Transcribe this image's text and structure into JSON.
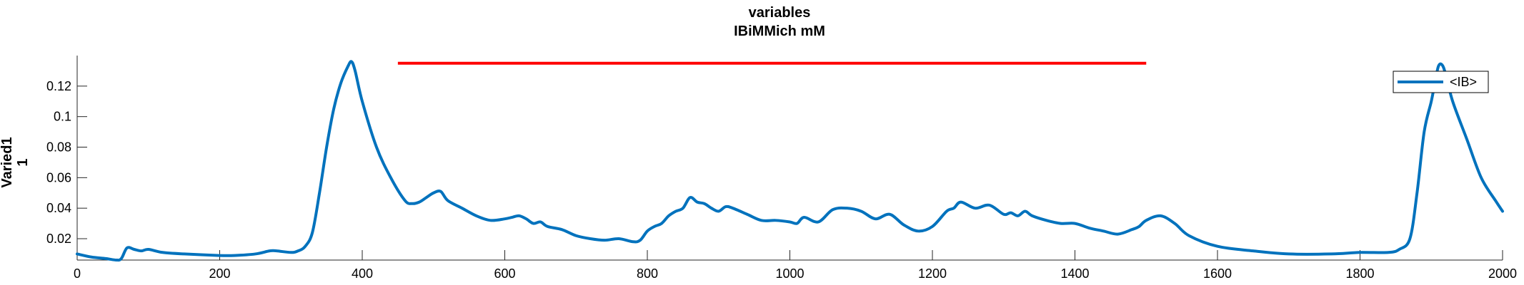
{
  "chart_data": {
    "type": "line",
    "title_lines": [
      "variables",
      "IBiMMich mM"
    ],
    "xlabel": "",
    "ylabel_lines": [
      "Varied1",
      "1"
    ],
    "xlim": [
      0,
      2000
    ],
    "ylim": [
      0.006,
      0.14
    ],
    "x_ticks": [
      0,
      200,
      400,
      600,
      800,
      1000,
      1200,
      1400,
      1600,
      1800,
      2000
    ],
    "x_tick_labels": [
      "0",
      "200",
      "400",
      "600",
      "800",
      "1000",
      "1200",
      "1400",
      "1600",
      "1800",
      "2000"
    ],
    "y_ticks": [
      0.02,
      0.04,
      0.06,
      0.08,
      0.1,
      0.12
    ],
    "y_tick_labels": [
      "0.02",
      "0.04",
      "0.06",
      "0.08",
      "0.1",
      "0.12"
    ],
    "grid": false,
    "legend_position": "top-right",
    "series": [
      {
        "name": "<IB>",
        "color": "#0072BD",
        "x": [
          0,
          20,
          40,
          55,
          62,
          70,
          80,
          90,
          100,
          120,
          150,
          200,
          220,
          250,
          270,
          280,
          300,
          310,
          320,
          330,
          340,
          350,
          360,
          370,
          380,
          385,
          390,
          400,
          420,
          440,
          460,
          470,
          480,
          490,
          500,
          510,
          520,
          540,
          560,
          580,
          600,
          610,
          620,
          630,
          640,
          650,
          660,
          680,
          700,
          720,
          740,
          760,
          780,
          790,
          800,
          810,
          820,
          830,
          840,
          850,
          860,
          870,
          880,
          890,
          900,
          910,
          920,
          940,
          960,
          980,
          1000,
          1010,
          1020,
          1040,
          1060,
          1080,
          1100,
          1120,
          1140,
          1160,
          1180,
          1200,
          1220,
          1230,
          1240,
          1260,
          1280,
          1300,
          1310,
          1320,
          1330,
          1340,
          1360,
          1380,
          1400,
          1420,
          1440,
          1460,
          1480,
          1490,
          1500,
          1520,
          1540,
          1560,
          1600,
          1650,
          1700,
          1760,
          1800,
          1840,
          1855,
          1870,
          1880,
          1890,
          1900,
          1905,
          1910,
          1915,
          1920,
          1930,
          1950,
          1970,
          1990,
          2000
        ],
        "values": [
          0.01,
          0.008,
          0.007,
          0.006,
          0.007,
          0.014,
          0.013,
          0.012,
          0.013,
          0.011,
          0.01,
          0.009,
          0.009,
          0.01,
          0.012,
          0.012,
          0.011,
          0.012,
          0.015,
          0.024,
          0.05,
          0.08,
          0.105,
          0.122,
          0.133,
          0.136,
          0.13,
          0.11,
          0.08,
          0.06,
          0.045,
          0.043,
          0.044,
          0.047,
          0.05,
          0.051,
          0.045,
          0.04,
          0.035,
          0.032,
          0.033,
          0.034,
          0.035,
          0.033,
          0.03,
          0.031,
          0.028,
          0.026,
          0.022,
          0.02,
          0.019,
          0.02,
          0.018,
          0.019,
          0.025,
          0.028,
          0.03,
          0.035,
          0.038,
          0.04,
          0.047,
          0.044,
          0.043,
          0.04,
          0.038,
          0.041,
          0.04,
          0.036,
          0.032,
          0.032,
          0.031,
          0.03,
          0.034,
          0.031,
          0.039,
          0.04,
          0.038,
          0.033,
          0.036,
          0.029,
          0.025,
          0.028,
          0.038,
          0.04,
          0.044,
          0.04,
          0.042,
          0.036,
          0.037,
          0.035,
          0.038,
          0.035,
          0.032,
          0.03,
          0.03,
          0.027,
          0.025,
          0.023,
          0.026,
          0.028,
          0.032,
          0.035,
          0.03,
          0.022,
          0.015,
          0.012,
          0.01,
          0.01,
          0.011,
          0.011,
          0.013,
          0.02,
          0.05,
          0.09,
          0.11,
          0.122,
          0.133,
          0.134,
          0.128,
          0.11,
          0.085,
          0.06,
          0.045,
          0.038
        ]
      }
    ],
    "annotations": [
      {
        "type": "horizontal-line",
        "color": "#ff0000",
        "x": [
          450,
          1500
        ],
        "y": 0.135
      }
    ]
  }
}
